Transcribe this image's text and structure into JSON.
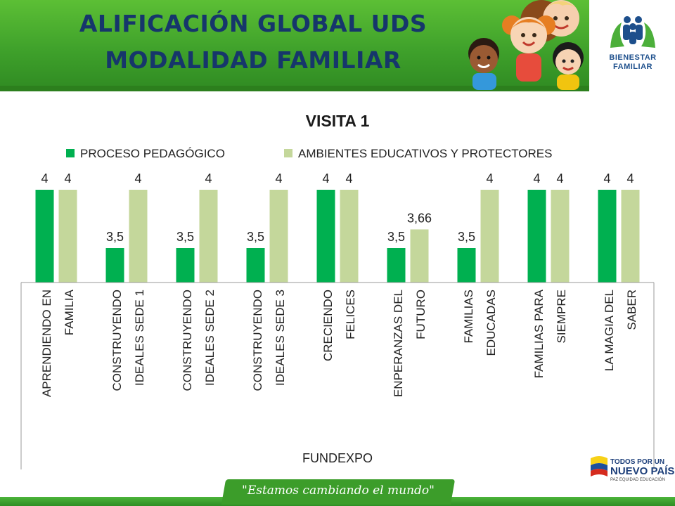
{
  "header": {
    "title_line1": "ALIFICACIÓN GLOBAL UDS",
    "title_line2": "MODALIDAD FAMILIAR",
    "logo_line1": "BIENESTAR",
    "logo_line2": "FAMILIAR"
  },
  "footer": {
    "slogan": "\"Estamos cambiando el mundo\"",
    "gov_logo_line1": "TODOS POR UN",
    "gov_logo_line2": "NUEVO PAÍS",
    "gov_logo_line3": "PAZ  EQUIDAD  EDUCACIÓN"
  },
  "colors": {
    "series1": "#00b050",
    "series2": "#c4d79b",
    "header_green": "#3fa12b",
    "title_blue": "#16366b"
  },
  "chart_data": {
    "type": "bar",
    "title": "VISITA 1",
    "xlabel": "FUNDEXPO",
    "ylabel": "",
    "ylim": [
      3,
      4
    ],
    "legend_position": "top",
    "grid": false,
    "categories": [
      "APRENDIENDO EN FAMILIA",
      "CONSTRUYENDO IDEALES SEDE 1",
      "CONSTRUYENDO IDEALES SEDE 2",
      "CONSTRUYENDO IDEALES SEDE 3",
      "CRECIENDO FELICES",
      "ENPERANZAS DEL FUTURO",
      "FAMILIAS EDUCADAS",
      "FAMILIAS PARA SIEMPRE",
      "LA MAGIA DEL SABER"
    ],
    "category_lines": [
      [
        "APRENDIENDO EN",
        "FAMILIA"
      ],
      [
        "CONSTRUYENDO",
        "IDEALES SEDE 1"
      ],
      [
        "CONSTRUYENDO",
        "IDEALES SEDE 2"
      ],
      [
        "CONSTRUYENDO",
        "IDEALES SEDE 3"
      ],
      [
        "CRECIENDO",
        "FELICES"
      ],
      [
        "ENPERANZAS DEL",
        "FUTURO"
      ],
      [
        "FAMILIAS",
        "EDUCADAS"
      ],
      [
        "FAMILIAS PARA",
        "SIEMPRE"
      ],
      [
        "LA MAGIA DEL",
        "SABER"
      ]
    ],
    "series": [
      {
        "name": "PROCESO PEDAGÓGICO",
        "values": [
          4,
          3.5,
          3.5,
          3.5,
          4,
          3.5,
          3.5,
          4,
          4
        ],
        "labels": [
          "4",
          "3,5",
          "3,5",
          "3,5",
          "4",
          "3,5",
          "3,5",
          "4",
          "4"
        ]
      },
      {
        "name": "AMBIENTES EDUCATIVOS Y PROTECTORES",
        "values": [
          4,
          4,
          4,
          4,
          4,
          3.66,
          4,
          4,
          4
        ],
        "labels": [
          "4",
          "4",
          "4",
          "4",
          "4",
          "3,66",
          "4",
          "4",
          "4"
        ]
      }
    ]
  }
}
